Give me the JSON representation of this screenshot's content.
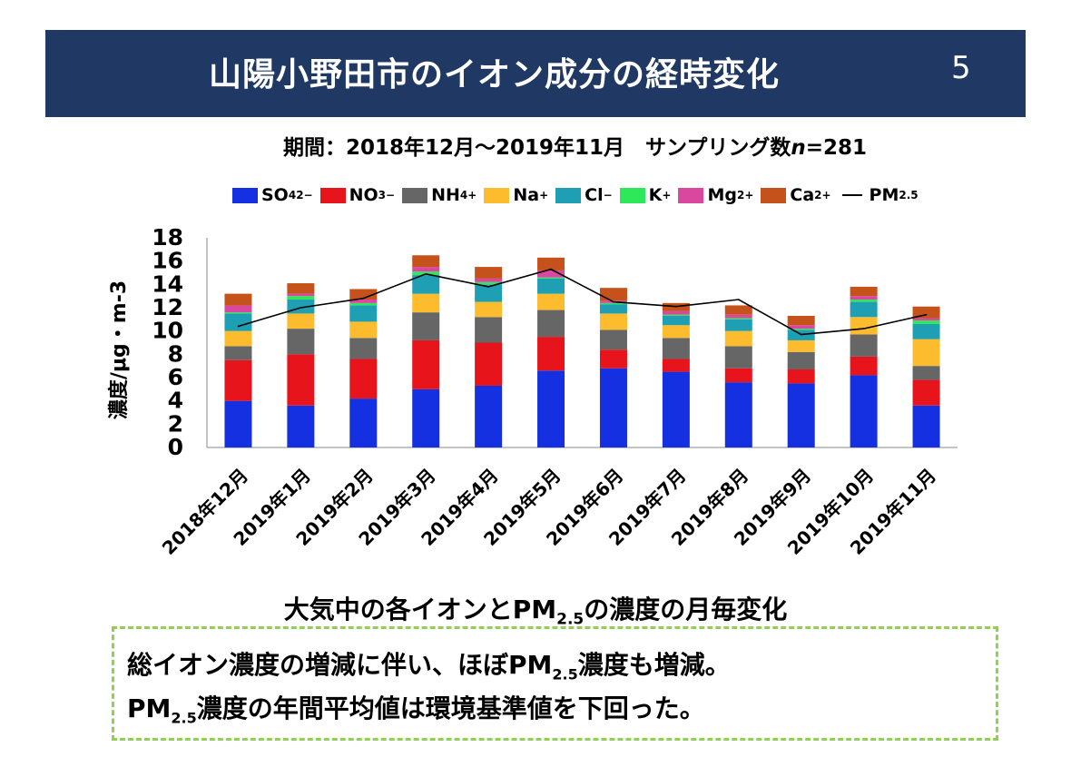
{
  "header": {
    "title": "山陽小野田市のイオン成分の経時変化",
    "page_number": "5",
    "bg_color": "#1f3864"
  },
  "period": {
    "label": "期間：2018年12月～2019年11月　サンプリング数",
    "n_symbol": "n",
    "n_value": "=281"
  },
  "legend": {
    "items": [
      {
        "base": "SO",
        "sub": "4",
        "sup": "2−",
        "color": "#1530e0"
      },
      {
        "base": "NO",
        "sub": "3",
        "sup": "−",
        "color": "#e8141c"
      },
      {
        "base": "NH",
        "sub": "4",
        "sup": "+",
        "color": "#666666"
      },
      {
        "base": "Na",
        "sub": "",
        "sup": "+",
        "color": "#fdbc2e"
      },
      {
        "base": "Cl",
        "sub": "",
        "sup": "−",
        "color": "#1f9fb4"
      },
      {
        "base": "K",
        "sub": "",
        "sup": "+",
        "color": "#2ee85a"
      },
      {
        "base": "Mg",
        "sub": "",
        "sup": "2+",
        "color": "#d9479e"
      },
      {
        "base": "Ca",
        "sub": "",
        "sup": "2+",
        "color": "#c5521b"
      }
    ],
    "line_item": {
      "base": "PM",
      "sub": "2.5"
    }
  },
  "chart_data": {
    "type": "bar",
    "stacked": true,
    "ylabel": "濃度/μg・m-3",
    "ylim": [
      0,
      18
    ],
    "yticks": [
      0,
      2,
      4,
      6,
      8,
      10,
      12,
      14,
      16,
      18
    ],
    "categories": [
      "2018年12月",
      "2019年1月",
      "2019年2月",
      "2019年3月",
      "2019年4月",
      "2019年5月",
      "2019年6月",
      "2019年7月",
      "2019年8月",
      "2019年9月",
      "2019年10月",
      "2019年11月"
    ],
    "series": [
      {
        "name": "SO4 2-",
        "color": "#1530e0",
        "values": [
          4.0,
          3.6,
          4.2,
          5.0,
          5.3,
          6.6,
          6.8,
          6.5,
          5.6,
          5.5,
          6.2,
          3.6
        ]
      },
      {
        "name": "NO3 -",
        "color": "#e8141c",
        "values": [
          3.5,
          4.4,
          3.4,
          4.2,
          3.7,
          2.9,
          1.6,
          1.1,
          1.2,
          1.2,
          1.6,
          2.2
        ]
      },
      {
        "name": "NH4 +",
        "color": "#666666",
        "values": [
          1.2,
          2.2,
          1.8,
          2.4,
          2.2,
          2.3,
          1.7,
          1.8,
          1.9,
          1.5,
          1.9,
          1.2
        ]
      },
      {
        "name": "Na +",
        "color": "#fdbc2e",
        "values": [
          1.3,
          1.3,
          1.4,
          1.6,
          1.3,
          1.4,
          1.4,
          1.1,
          1.3,
          1.0,
          1.5,
          2.3
        ]
      },
      {
        "name": "Cl -",
        "color": "#1f9fb4",
        "values": [
          1.5,
          1.2,
          1.4,
          1.6,
          1.5,
          1.3,
          0.8,
          0.8,
          1.0,
          0.9,
          1.3,
          1.3
        ]
      },
      {
        "name": "K +",
        "color": "#2ee85a",
        "values": [
          0.1,
          0.3,
          0.2,
          0.3,
          0.2,
          0.1,
          0.1,
          0.1,
          0.1,
          0.1,
          0.2,
          0.3
        ]
      },
      {
        "name": "Mg 2+",
        "color": "#d9479e",
        "values": [
          0.6,
          0.2,
          0.3,
          0.4,
          0.3,
          0.6,
          0.2,
          0.3,
          0.3,
          0.3,
          0.3,
          0.2
        ]
      },
      {
        "name": "Ca 2+",
        "color": "#c5521b",
        "values": [
          1.0,
          0.9,
          0.9,
          1.0,
          1.0,
          1.1,
          1.1,
          0.7,
          0.8,
          0.8,
          0.8,
          1.0
        ]
      }
    ],
    "line_series": {
      "name": "PM2.5",
      "color": "#000000",
      "values": [
        10.4,
        12.0,
        12.8,
        14.9,
        13.8,
        15.3,
        12.5,
        12.1,
        12.7,
        9.7,
        10.2,
        11.4
      ]
    }
  },
  "caption": {
    "pre": "大気中の各イオンとPM",
    "sub": "2.5",
    "post": "の濃度の月毎変化"
  },
  "notes": {
    "line1_pre": "総イオン濃度の増減に伴い、ほぼPM",
    "line1_sub": "2.5",
    "line1_post": "濃度も増減。",
    "line2_pre": "PM",
    "line2_sub": "2.5",
    "line2_post": "濃度の年間平均値は環境基準値を下回った。"
  }
}
